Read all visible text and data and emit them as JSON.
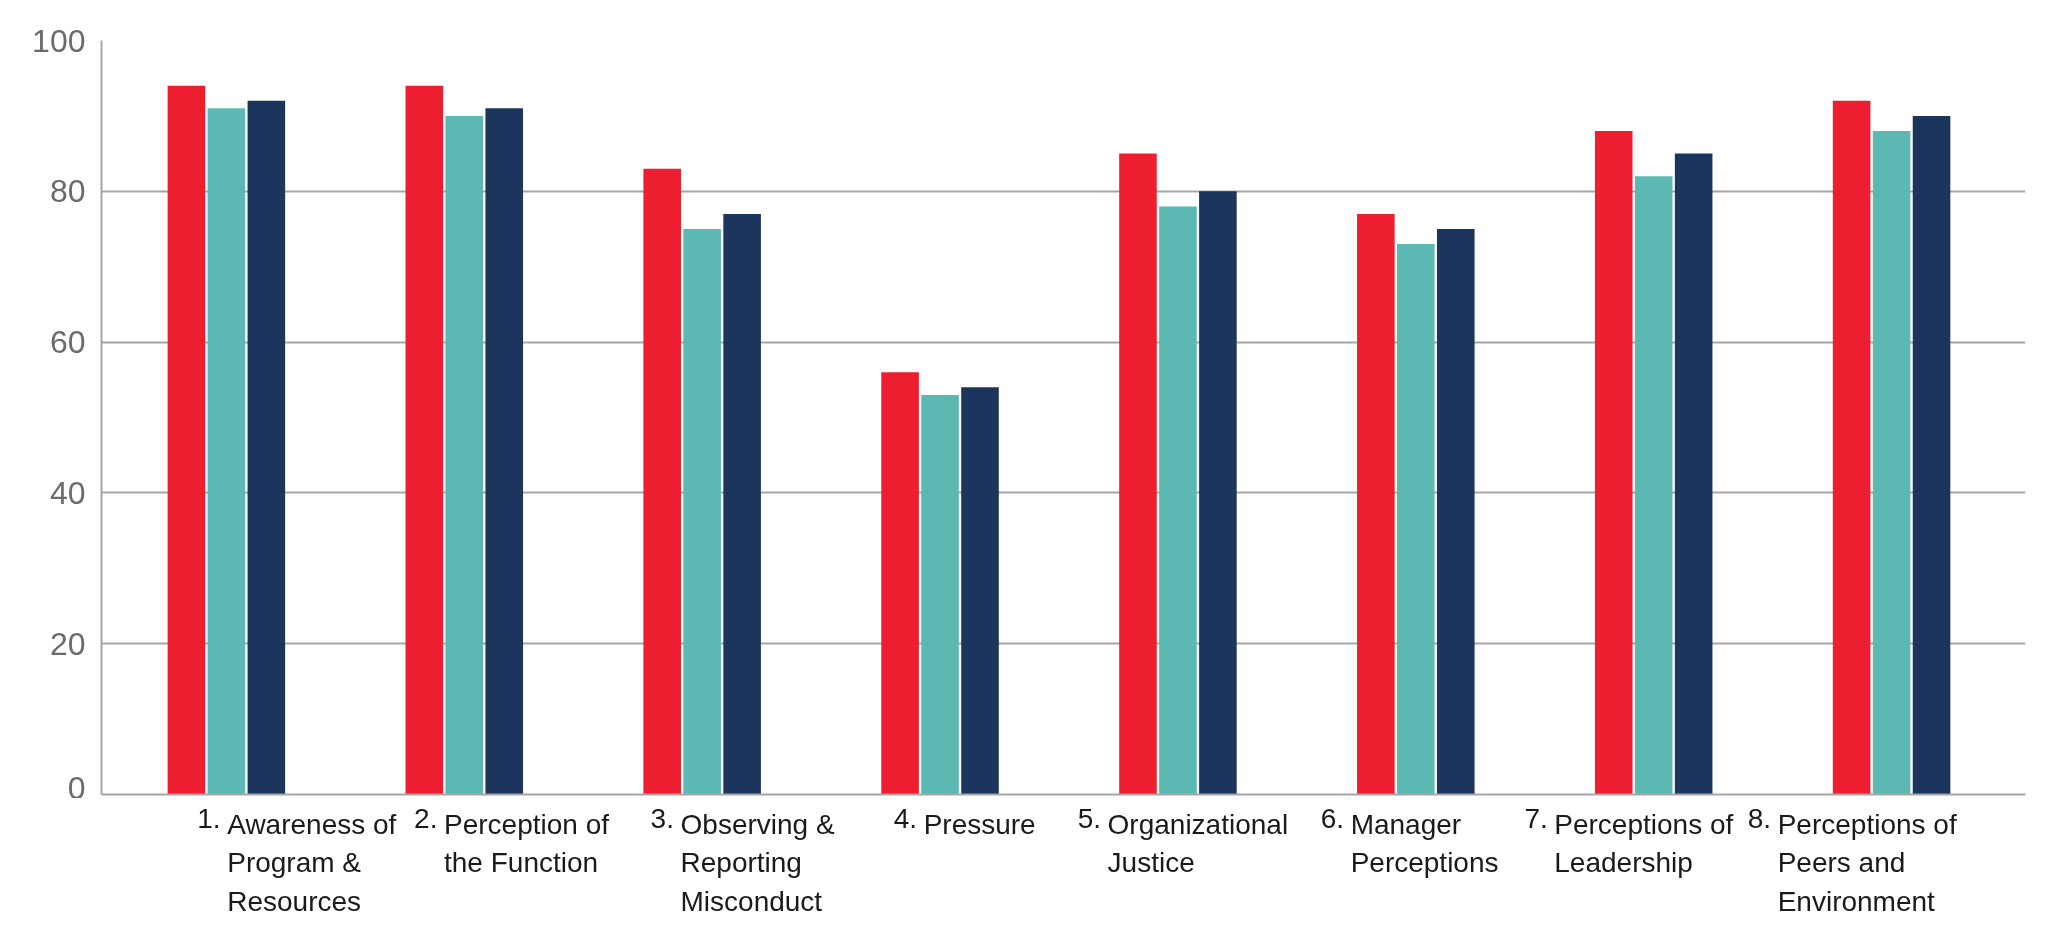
{
  "chart_data": {
    "type": "bar",
    "categories": [
      "1. Awareness of Program & Resources",
      "2. Perception of the Function",
      "3. Observing & Reporting Misconduct",
      "4. Pressure",
      "5. Organizational Justice",
      "6. Manager Perceptions",
      "7. Perceptions of Leadership",
      "8. Perceptions of Peers and Environment"
    ],
    "series": [
      {
        "color": "#ec1e2f",
        "values": [
          94,
          94,
          83,
          56,
          85,
          77,
          88,
          92
        ]
      },
      {
        "color": "#5cb8b2",
        "values": [
          91,
          90,
          75,
          53,
          78,
          73,
          82,
          88
        ]
      },
      {
        "color": "#1b355c",
        "values": [
          92,
          91,
          77,
          54,
          80,
          75,
          85,
          90
        ]
      }
    ],
    "ylim": [
      0,
      100
    ],
    "yticks": [
      0,
      20,
      40,
      60,
      80,
      100
    ],
    "grid": "y"
  }
}
